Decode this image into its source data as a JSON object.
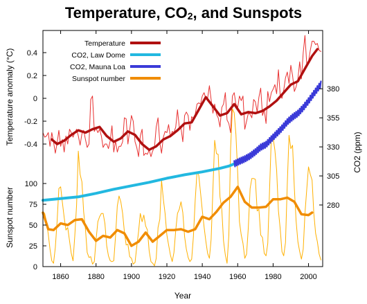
{
  "chart_data": {
    "type": "line",
    "title": {
      "main": "Temperature, CO",
      "sub": "2",
      "rest": ", and Sunspots"
    },
    "xlabel": "Year",
    "ylabel_temperature": "Temperature anomaly (°C)",
    "ylabel_sunspots": "Sunspot number",
    "ylabel_co2": "CO2 (ppm)",
    "xlim": [
      1850,
      2008
    ],
    "x_ticks": [
      1860,
      1880,
      1900,
      1920,
      1940,
      1960,
      1980,
      2000
    ],
    "temperature_ticks": [
      -0.4,
      -0.2,
      0,
      0.2,
      0.4
    ],
    "temperature_tick_labels": [
      "-0.4",
      "-0.2",
      "0",
      "0.2",
      "0.4"
    ],
    "sunspot_ticks": [
      0,
      25,
      50,
      75,
      100
    ],
    "co2_ticks": [
      280,
      305,
      330,
      355,
      380
    ],
    "colors": {
      "temperature": "#b01010",
      "temperature_raw": "#e83030",
      "co2_law_dome": "#22b8e0",
      "co2_mauna_loa": "#3a3ad8",
      "sunspot": "#f08c00",
      "sunspot_raw": "#ffb000"
    },
    "legend": [
      {
        "key": "temperature",
        "label": "Temperature"
      },
      {
        "key": "co2_law_dome",
        "label": "CO2, Law Dome"
      },
      {
        "key": "co2_mauna_loa",
        "label": "CO2, Mauna Loa"
      },
      {
        "key": "sunspot",
        "label": "Sunspot number"
      }
    ],
    "series": [
      {
        "name": "Temperature",
        "axis": "temperature",
        "smoothed_years": [
          1855,
          1858,
          1862,
          1866,
          1870,
          1874,
          1878,
          1882,
          1886,
          1890,
          1894,
          1898,
          1902,
          1906,
          1910,
          1914,
          1918,
          1922,
          1926,
          1930,
          1934,
          1938,
          1942,
          1946,
          1950,
          1954,
          1958,
          1962,
          1966,
          1970,
          1974,
          1978,
          1982,
          1986,
          1990,
          1994,
          1998,
          2002,
          2005
        ],
        "smoothed_values": [
          -0.36,
          -0.4,
          -0.37,
          -0.32,
          -0.28,
          -0.3,
          -0.27,
          -0.25,
          -0.33,
          -0.38,
          -0.35,
          -0.29,
          -0.32,
          -0.4,
          -0.45,
          -0.42,
          -0.36,
          -0.33,
          -0.28,
          -0.22,
          -0.21,
          -0.1,
          0.01,
          -0.07,
          -0.15,
          -0.13,
          -0.05,
          -0.14,
          -0.12,
          -0.13,
          -0.11,
          -0.07,
          -0.02,
          0.05,
          0.12,
          0.15,
          0.26,
          0.37,
          0.43
        ],
        "annual_years": [
          1850,
          1851,
          1852,
          1853,
          1854,
          1855,
          1856,
          1857,
          1858,
          1859,
          1860,
          1861,
          1862,
          1863,
          1864,
          1865,
          1866,
          1867,
          1868,
          1869,
          1870,
          1871,
          1872,
          1873,
          1874,
          1875,
          1876,
          1877,
          1878,
          1879,
          1880,
          1881,
          1882,
          1883,
          1884,
          1885,
          1886,
          1887,
          1888,
          1889,
          1890,
          1891,
          1892,
          1893,
          1894,
          1895,
          1896,
          1897,
          1898,
          1899,
          1900,
          1901,
          1902,
          1903,
          1904,
          1905,
          1906,
          1907,
          1908,
          1909,
          1910,
          1911,
          1912,
          1913,
          1914,
          1915,
          1916,
          1917,
          1918,
          1919,
          1920,
          1921,
          1922,
          1923,
          1924,
          1925,
          1926,
          1927,
          1928,
          1929,
          1930,
          1931,
          1932,
          1933,
          1934,
          1935,
          1936,
          1937,
          1938,
          1939,
          1940,
          1941,
          1942,
          1943,
          1944,
          1945,
          1946,
          1947,
          1948,
          1949,
          1950,
          1951,
          1952,
          1953,
          1954,
          1955,
          1956,
          1957,
          1958,
          1959,
          1960,
          1961,
          1962,
          1963,
          1964,
          1965,
          1966,
          1967,
          1968,
          1969,
          1970,
          1971,
          1972,
          1973,
          1974,
          1975,
          1976,
          1977,
          1978,
          1979,
          1980,
          1981,
          1982,
          1983,
          1984,
          1985,
          1986,
          1987,
          1988,
          1989,
          1990,
          1991,
          1992,
          1993,
          1994,
          1995,
          1996,
          1997,
          1998,
          1999,
          2000,
          2001,
          2002,
          2003,
          2004,
          2005,
          2006,
          2007
        ],
        "annual_values": [
          -0.3,
          -0.34,
          -0.33,
          -0.3,
          -0.42,
          -0.3,
          -0.38,
          -0.48,
          -0.39,
          -0.28,
          -0.42,
          -0.36,
          -0.47,
          -0.33,
          -0.4,
          -0.27,
          -0.3,
          -0.34,
          -0.3,
          -0.27,
          -0.33,
          -0.41,
          -0.31,
          -0.28,
          -0.36,
          -0.43,
          -0.4,
          -0.01,
          0.02,
          -0.29,
          -0.26,
          -0.3,
          -0.27,
          -0.33,
          -0.43,
          -0.4,
          -0.4,
          -0.44,
          -0.37,
          -0.24,
          -0.47,
          -0.37,
          -0.47,
          -0.42,
          -0.42,
          -0.38,
          -0.17,
          -0.18,
          -0.4,
          -0.28,
          -0.15,
          -0.2,
          -0.38,
          -0.43,
          -0.51,
          -0.33,
          -0.27,
          -0.5,
          -0.48,
          -0.49,
          -0.45,
          -0.51,
          -0.46,
          -0.43,
          -0.25,
          -0.17,
          -0.39,
          -0.48,
          -0.34,
          -0.29,
          -0.3,
          -0.23,
          -0.34,
          -0.29,
          -0.3,
          -0.25,
          -0.1,
          -0.25,
          -0.26,
          -0.38,
          -0.15,
          -0.12,
          -0.15,
          -0.28,
          -0.16,
          -0.18,
          -0.14,
          -0.05,
          -0.04,
          -0.05,
          0.02,
          0.05,
          0.0,
          0.0,
          0.11,
          -0.01,
          -0.13,
          -0.05,
          -0.14,
          -0.17,
          -0.25,
          -0.08,
          -0.05,
          0.05,
          -0.19,
          -0.22,
          -0.3,
          0.02,
          0.05,
          -0.05,
          -0.08,
          0.02,
          -0.02,
          0.02,
          -0.27,
          -0.2,
          -0.13,
          -0.14,
          -0.17,
          -0.01,
          -0.03,
          -0.12,
          0.01,
          0.09,
          -0.15,
          -0.1,
          -0.22,
          0.06,
          -0.03,
          0.05,
          0.08,
          0.12,
          0.04,
          0.25,
          0.03,
          0.0,
          0.07,
          0.18,
          0.23,
          0.13,
          0.29,
          0.2,
          0.06,
          0.1,
          0.17,
          0.32,
          0.17,
          0.4,
          0.55,
          0.3,
          0.32,
          0.42,
          0.5,
          0.5,
          0.47,
          0.48,
          0.42,
          0.41
        ]
      },
      {
        "name": "CO2, Law Dome",
        "axis": "co2",
        "years": [
          1850,
          1860,
          1870,
          1880,
          1890,
          1900,
          1910,
          1920,
          1930,
          1940,
          1950,
          1955,
          1959
        ],
        "values": [
          284,
          285.5,
          287,
          290,
          293.5,
          296.5,
          299.5,
          303,
          306,
          308.5,
          311.5,
          313.5,
          316
        ]
      },
      {
        "name": "CO2, Mauna Loa",
        "axis": "co2",
        "years": [
          1958,
          1961,
          1964,
          1967,
          1970,
          1973,
          1976,
          1979,
          1982,
          1985,
          1988,
          1991,
          1994,
          1997,
          2000,
          2003,
          2006,
          2007
        ],
        "values": [
          315.3,
          317.6,
          319.6,
          322.2,
          325.7,
          329.7,
          332.0,
          336.8,
          341.4,
          346.1,
          351.5,
          355.6,
          358.8,
          363.7,
          369.5,
          375.8,
          381.9,
          383.8
        ]
      },
      {
        "name": "Sunspot number",
        "axis": "sunspot",
        "smoothed_years": [
          1850,
          1853,
          1856,
          1860,
          1864,
          1868,
          1872,
          1876,
          1880,
          1884,
          1888,
          1892,
          1896,
          1900,
          1904,
          1908,
          1912,
          1916,
          1920,
          1924,
          1928,
          1932,
          1936,
          1940,
          1944,
          1948,
          1952,
          1956,
          1960,
          1964,
          1968,
          1972,
          1976,
          1980,
          1984,
          1988,
          1992,
          1996,
          2000,
          2002
        ],
        "smoothed_values": [
          65,
          45,
          44,
          52,
          50,
          56,
          57,
          42,
          31,
          37,
          35,
          44,
          40,
          25,
          30,
          41,
          30,
          37,
          44,
          44,
          45,
          42,
          45,
          60,
          57,
          66,
          77,
          84,
          96,
          78,
          71,
          71,
          72,
          81,
          81,
          83,
          78,
          63,
          62,
          65
        ],
        "annual_years": [
          1850,
          1851,
          1852,
          1853,
          1854,
          1855,
          1856,
          1857,
          1858,
          1859,
          1860,
          1861,
          1862,
          1863,
          1864,
          1865,
          1866,
          1867,
          1868,
          1869,
          1870,
          1871,
          1872,
          1873,
          1874,
          1875,
          1876,
          1877,
          1878,
          1879,
          1880,
          1881,
          1882,
          1883,
          1884,
          1885,
          1886,
          1887,
          1888,
          1889,
          1890,
          1891,
          1892,
          1893,
          1894,
          1895,
          1896,
          1897,
          1898,
          1899,
          1900,
          1901,
          1902,
          1903,
          1904,
          1905,
          1906,
          1907,
          1908,
          1909,
          1910,
          1911,
          1912,
          1913,
          1914,
          1915,
          1916,
          1917,
          1918,
          1919,
          1920,
          1921,
          1922,
          1923,
          1924,
          1925,
          1926,
          1927,
          1928,
          1929,
          1930,
          1931,
          1932,
          1933,
          1934,
          1935,
          1936,
          1937,
          1938,
          1939,
          1940,
          1941,
          1942,
          1943,
          1944,
          1945,
          1946,
          1947,
          1948,
          1949,
          1950,
          1951,
          1952,
          1953,
          1954,
          1955,
          1956,
          1957,
          1958,
          1959,
          1960,
          1961,
          1962,
          1963,
          1964,
          1965,
          1966,
          1967,
          1968,
          1969,
          1970,
          1971,
          1972,
          1973,
          1974,
          1975,
          1976,
          1977,
          1978,
          1979,
          1980,
          1981,
          1982,
          1983,
          1984,
          1985,
          1986,
          1987,
          1988,
          1989,
          1990,
          1991,
          1992,
          1993,
          1994,
          1995,
          1996,
          1997,
          1998,
          1999,
          2000,
          2001,
          2002,
          2003,
          2004,
          2005,
          2006,
          2007
        ],
        "annual_values": [
          66,
          64,
          54,
          39,
          21,
          7,
          4,
          23,
          55,
          94,
          96,
          77,
          59,
          44,
          47,
          31,
          16,
          7,
          37,
          74,
          139,
          111,
          102,
          66,
          45,
          17,
          11,
          12,
          3,
          6,
          32,
          54,
          60,
          64,
          64,
          52,
          25,
          13,
          7,
          6,
          7,
          36,
          73,
          85,
          78,
          64,
          42,
          26,
          27,
          12,
          10,
          3,
          5,
          24,
          42,
          64,
          54,
          62,
          49,
          44,
          19,
          6,
          4,
          1,
          10,
          47,
          57,
          104,
          81,
          64,
          38,
          26,
          14,
          6,
          17,
          44,
          64,
          69,
          78,
          65,
          36,
          21,
          11,
          6,
          9,
          36,
          80,
          114,
          110,
          89,
          68,
          48,
          31,
          16,
          10,
          33,
          93,
          152,
          136,
          135,
          84,
          69,
          31,
          14,
          4,
          38,
          142,
          190,
          185,
          159,
          112,
          54,
          38,
          28,
          10,
          15,
          47,
          94,
          106,
          106,
          105,
          67,
          69,
          38,
          35,
          16,
          13,
          28,
          93,
          155,
          155,
          140,
          116,
          67,
          46,
          18,
          13,
          29,
          100,
          158,
          142,
          146,
          94,
          55,
          30,
          18,
          9,
          21,
          64,
          93,
          120,
          111,
          104,
          64,
          40,
          30,
          15,
          8
        ]
      }
    ]
  }
}
